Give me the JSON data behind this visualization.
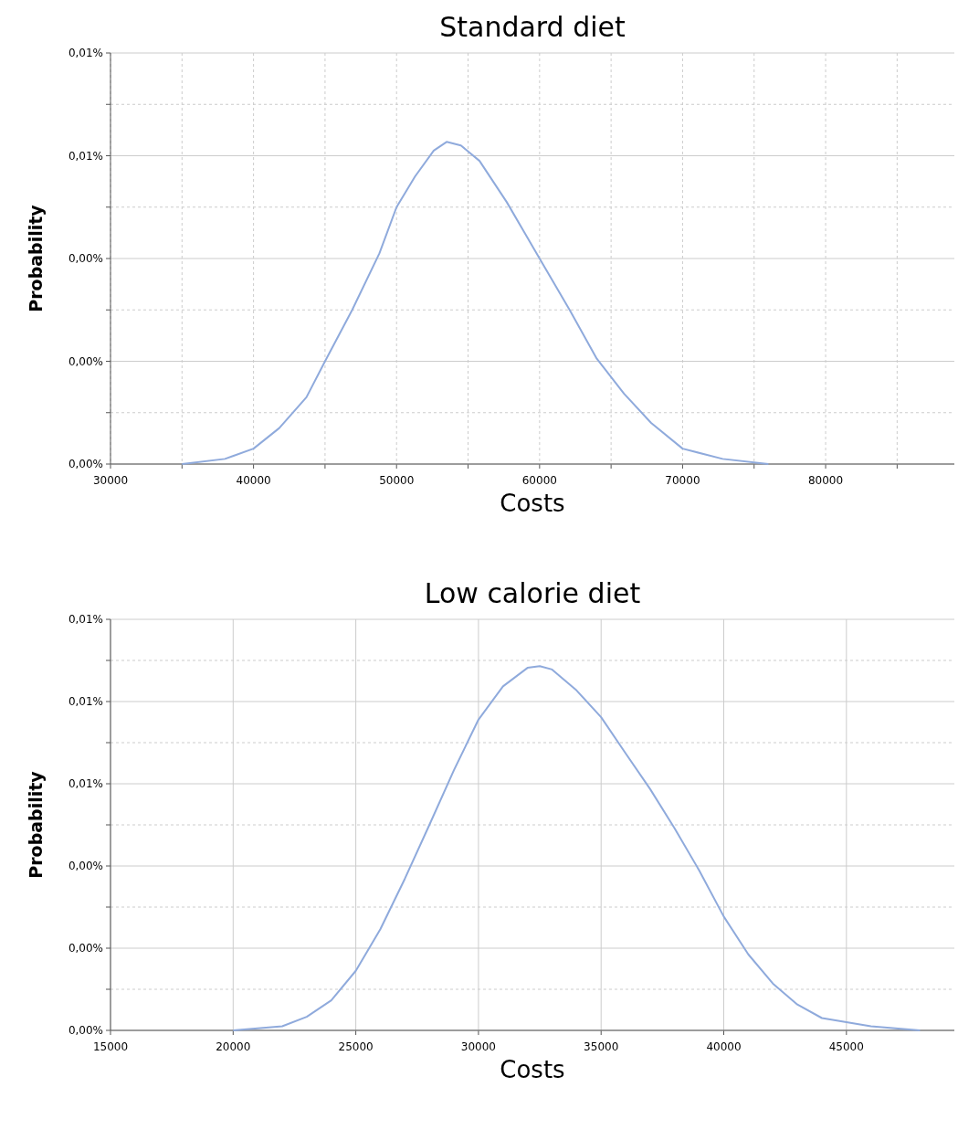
{
  "chart_data": [
    {
      "type": "line",
      "title": "Standard diet",
      "xlabel": "Costs",
      "ylabel": "Probability",
      "grid": true,
      "xlim": [
        30000,
        89000
      ],
      "ylim": [
        0,
        0.008
      ],
      "xticks": [
        30000,
        {
          "value": 35000,
          "label": null
        },
        40000,
        {
          "value": 45000,
          "label": null
        },
        50000,
        {
          "value": 55000,
          "label": null
        },
        60000,
        {
          "value": 65000,
          "label": null
        },
        70000,
        {
          "value": 75000,
          "label": null
        },
        80000,
        {
          "value": 85000,
          "label": null
        }
      ],
      "yticks": [
        {
          "value": 0,
          "label": "0,00%"
        },
        {
          "value": 0.001,
          "label": null
        },
        {
          "value": 0.002,
          "label": "0,00%"
        },
        {
          "value": 0.003,
          "label": null
        },
        {
          "value": 0.004,
          "label": "0,00%"
        },
        {
          "value": 0.005,
          "label": null
        },
        {
          "value": 0.006,
          "label": "0,01%"
        },
        {
          "value": 0.007,
          "label": null
        },
        {
          "value": 0.008,
          "label": "0,01%"
        }
      ],
      "x": [
        35000,
        38000,
        40000,
        41800,
        43700,
        45000,
        46900,
        48800,
        50000,
        51300,
        52600,
        53500,
        54500,
        55800,
        57700,
        60000,
        62100,
        64000,
        65900,
        67800,
        70000,
        72800,
        76000
      ],
      "series": [
        {
          "color": "#8faadc",
          "values": [
            0,
            0.0001,
            0.0003,
            0.0007,
            0.0013,
            0.002,
            0.003,
            0.0041,
            0.005,
            0.0056,
            0.0061,
            0.00627,
            0.0062,
            0.0059,
            0.0051,
            0.004,
            0.003,
            0.00205,
            0.00137,
            0.0008,
            0.0003,
            0.0001,
            0
          ]
        }
      ]
    },
    {
      "type": "line",
      "title": "Low calorie diet",
      "xlabel": "Costs",
      "ylabel": "Probability",
      "grid": true,
      "xlim": [
        15000,
        49400
      ],
      "ylim": [
        0,
        0.01
      ],
      "xticks": [
        15000,
        20000,
        25000,
        30000,
        35000,
        40000,
        45000
      ],
      "yticks": [
        {
          "value": 0,
          "label": "0,00%"
        },
        {
          "value": 0.001,
          "label": null
        },
        {
          "value": 0.002,
          "label": "0,00%"
        },
        {
          "value": 0.003,
          "label": null
        },
        {
          "value": 0.004,
          "label": "0,00%"
        },
        {
          "value": 0.005,
          "label": null
        },
        {
          "value": 0.006,
          "label": "0,01%"
        },
        {
          "value": 0.007,
          "label": null
        },
        {
          "value": 0.008,
          "label": "0,01%"
        },
        {
          "value": 0.009,
          "label": null
        },
        {
          "value": 0.01,
          "label": "0,01%"
        }
      ],
      "x": [
        20000,
        22000,
        23000,
        24000,
        25000,
        26000,
        27000,
        28000,
        29000,
        30000,
        31000,
        32000,
        32500,
        33000,
        34000,
        35000,
        36000,
        37000,
        38000,
        39000,
        40000,
        41000,
        42000,
        43000,
        44000,
        45000,
        46000,
        48000
      ],
      "series": [
        {
          "color": "#8faadc",
          "values": [
            0,
            0.0001,
            0.00033,
            0.00073,
            0.00145,
            0.00246,
            0.00369,
            0.005,
            0.00633,
            0.00756,
            0.00837,
            0.00882,
            0.00886,
            0.00878,
            0.00827,
            0.00762,
            0.00674,
            0.00587,
            0.00491,
            0.00389,
            0.00277,
            0.00185,
            0.00114,
            0.00063,
            0.0003,
            0.0002,
            0.0001,
            0
          ]
        }
      ]
    }
  ]
}
